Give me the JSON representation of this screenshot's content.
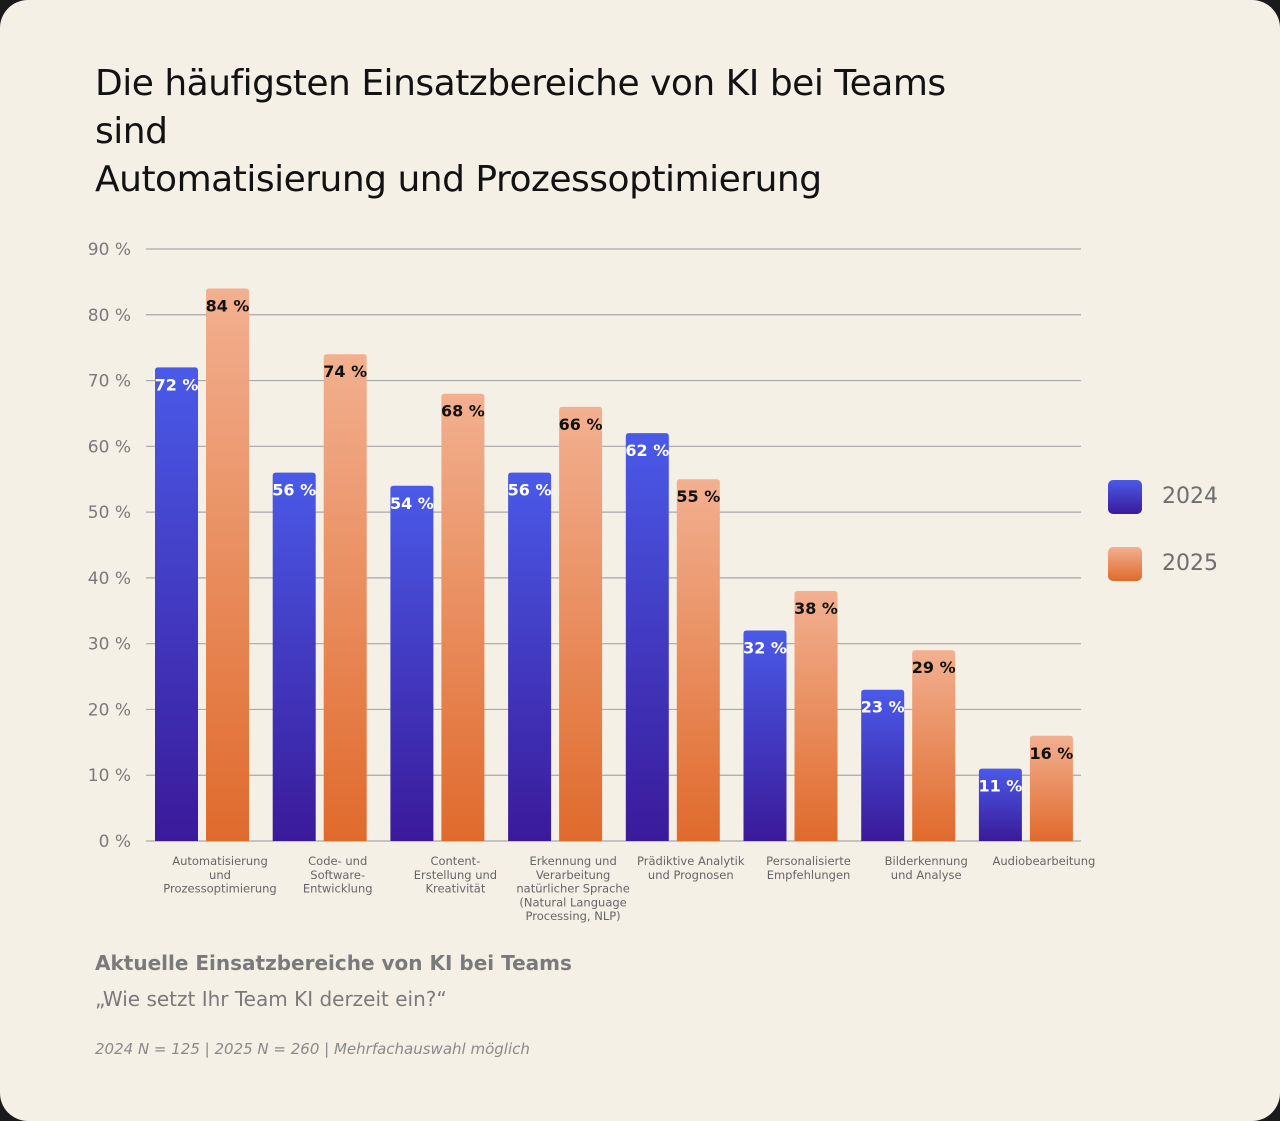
{
  "title_lines": [
    "Die häufigsten Einsatzbereiche von KI bei Teams",
    "sind",
    "Automatisierung und Prozessoptimierung"
  ],
  "subtitle": "Aktuelle Einsatzbereiche von KI bei Teams",
  "question": "„Wie setzt Ihr Team KI derzeit ein?“",
  "note": "2024 N = 125 | 2025 N = 260 | Mehrfachauswahl möglich",
  "colors": {
    "background": "#f5f0e6",
    "series_2024_top": "#4a5ae8",
    "series_2024_bottom": "#3a1a9a",
    "series_2025_top": "#f2b090",
    "series_2025_bottom": "#e06a2c",
    "gridline": "#a8a8a8",
    "label_2024": "#ffffff",
    "label_2025": "#121212"
  },
  "chart_data": {
    "type": "bar",
    "categories": [
      [
        "Automatisierung",
        "und",
        "Prozessoptimierung"
      ],
      [
        "Code- und",
        "Software-",
        "Entwicklung"
      ],
      [
        "Content-",
        "Erstellung und",
        "Kreativität"
      ],
      [
        "Erkennung und",
        "Verarbeitung",
        "natürlicher Sprache",
        "(Natural Language",
        "Processing, NLP)"
      ],
      [
        "Prädiktive Analytik",
        "und Prognosen"
      ],
      [
        "Personalisierte",
        "Empfehlungen"
      ],
      [
        "Bilderkennung",
        "und Analyse"
      ],
      [
        "Audiobearbeitung"
      ]
    ],
    "series": [
      {
        "name": "2024",
        "values": [
          72,
          56,
          54,
          56,
          62,
          32,
          23,
          11
        ],
        "labels": [
          "72 %",
          "56 %",
          "54 %",
          "56 %",
          "62 %",
          "32 %",
          "23 %",
          "11 %"
        ]
      },
      {
        "name": "2025",
        "values": [
          84,
          74,
          68,
          66,
          55,
          38,
          29,
          16
        ],
        "labels": [
          "84 %",
          "74 %",
          "68 %",
          "66 %",
          "55 %",
          "38 %",
          "29 %",
          "16 %"
        ]
      }
    ],
    "yticks": [
      "0 %",
      "10 %",
      "20 %",
      "30 %",
      "40 %",
      "50 %",
      "60 %",
      "70 %",
      "80 %",
      "90 %"
    ],
    "ylim": [
      0,
      90
    ],
    "grid": true,
    "legend_position": "right"
  }
}
